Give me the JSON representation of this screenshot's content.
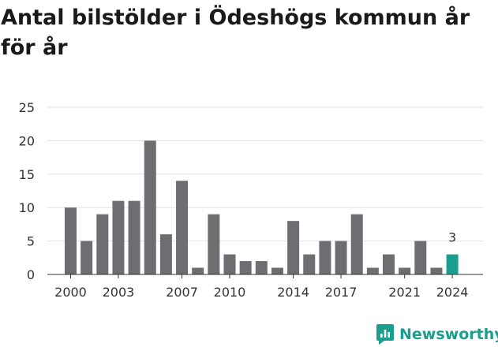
{
  "title": "Antal bilstölder i Ödeshögs kommun år för år",
  "brand": {
    "name": "Newsworthy",
    "color": "#1a9e8f"
  },
  "chart_data": {
    "type": "bar",
    "categories": [
      "2000",
      "2001",
      "2002",
      "2003",
      "2004",
      "2005",
      "2006",
      "2007",
      "2008",
      "2009",
      "2010",
      "2011",
      "2012",
      "2013",
      "2014",
      "2015",
      "2016",
      "2017",
      "2018",
      "2019",
      "2020",
      "2021",
      "2022",
      "2023",
      "2024"
    ],
    "values": [
      10,
      5,
      9,
      11,
      11,
      20,
      6,
      14,
      1,
      9,
      3,
      2,
      2,
      1,
      8,
      3,
      5,
      5,
      9,
      1,
      3,
      1,
      5,
      1,
      3
    ],
    "x_tick_labels": [
      "2000",
      "2003",
      "2007",
      "2010",
      "2014",
      "2017",
      "2021",
      "2024"
    ],
    "y_ticks": [
      0,
      5,
      10,
      15,
      20,
      25
    ],
    "ylim": [
      0,
      25
    ],
    "highlight": {
      "category": "2024",
      "label": "3",
      "color": "#1a9e8f"
    },
    "bar_color": "#6e6d72",
    "grid": true,
    "xlabel": "",
    "ylabel": ""
  }
}
